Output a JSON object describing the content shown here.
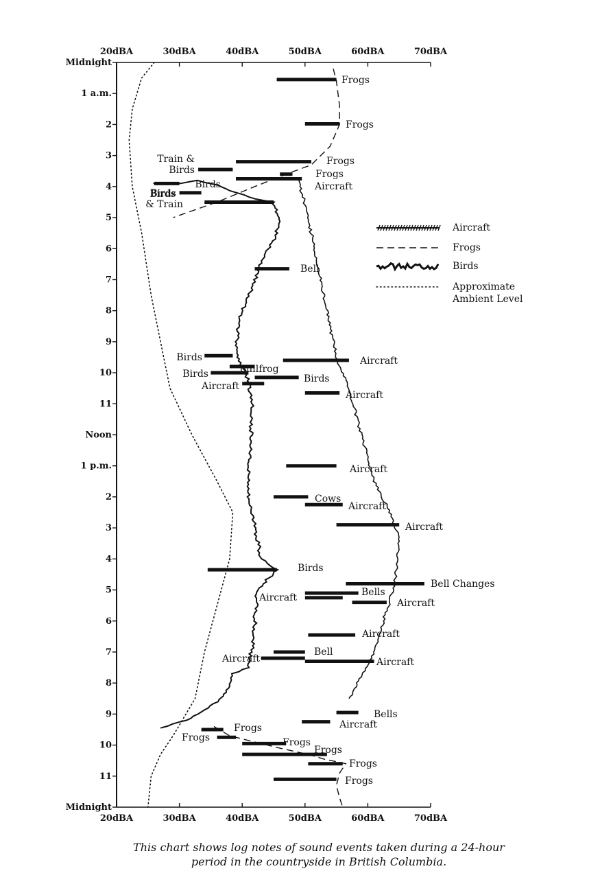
{
  "chart_data": {
    "type": "sound-event log chart",
    "x_axis": {
      "ticks": [
        "20dBA",
        "30dBA",
        "40dBA",
        "50dBA",
        "60dBA",
        "70dBA"
      ],
      "range": [
        20,
        70
      ],
      "unit": "dBA"
    },
    "y_axis": {
      "ticks": [
        "Midnight",
        "1 a.m.",
        "2",
        "3",
        "4",
        "5",
        "6",
        "7",
        "8",
        "9",
        "10",
        "11",
        "Noon",
        "1 p.m.",
        "2",
        "3",
        "4",
        "5",
        "6",
        "7",
        "8",
        "9",
        "10",
        "11",
        "Midnight"
      ],
      "range_hours": [
        0,
        24
      ],
      "direction": "downward"
    },
    "legend": {
      "placement": "right",
      "items": [
        {
          "key": "aircraft",
          "label": "Aircraft",
          "style": "hatched line"
        },
        {
          "key": "frogs",
          "label": "Frogs",
          "style": "dashed line"
        },
        {
          "key": "birds",
          "label": "Birds",
          "style": "jagged heavy line"
        },
        {
          "key": "ambient",
          "label": "Approximate Ambient Level",
          "style": "dotted line"
        }
      ]
    },
    "event_bars": [
      {
        "label": "Frogs",
        "hour": 0.55,
        "from": 45.5,
        "to": 55
      },
      {
        "label": "Frogs",
        "hour": 1.98,
        "from": 50,
        "to": 55.5
      },
      {
        "label": "Frogs",
        "hour": 3.2,
        "from": 39,
        "to": 51
      },
      {
        "label": "Train & Birds",
        "hour": 3.45,
        "from": 33,
        "to": 38.5
      },
      {
        "label": "Frogs",
        "hour": 3.6,
        "from": 46,
        "to": 48
      },
      {
        "label": "Aircraft",
        "hour": 3.75,
        "from": 39,
        "to": 49.5
      },
      {
        "label": "Birds",
        "hour": 3.9,
        "from": 26,
        "to": 30
      },
      {
        "label": "Birds",
        "hour": 4.2,
        "from": 30,
        "to": 33.5
      },
      {
        "label": "Birds & Train",
        "hour": 4.5,
        "from": 34,
        "to": 45
      },
      {
        "label": "Bell",
        "hour": 6.65,
        "from": 42,
        "to": 47.5
      },
      {
        "label": "Birds",
        "hour": 9.45,
        "from": 34,
        "to": 38.5
      },
      {
        "label": "Aircraft",
        "hour": 9.6,
        "from": 46.5,
        "to": 57
      },
      {
        "label": "Bullfrog",
        "hour": 9.8,
        "from": 38,
        "to": 42
      },
      {
        "label": "Birds",
        "hour": 10.0,
        "from": 35,
        "to": 41
      },
      {
        "label": "Birds",
        "hour": 10.15,
        "from": 42,
        "to": 49
      },
      {
        "label": "Aircraft",
        "hour": 10.35,
        "from": 40,
        "to": 43.5
      },
      {
        "label": "Aircraft",
        "hour": 10.65,
        "from": 50,
        "to": 55.5
      },
      {
        "label": "Aircraft",
        "hour": 13.0,
        "from": 47,
        "to": 55
      },
      {
        "label": "Cows",
        "hour": 14.0,
        "from": 45,
        "to": 50.5
      },
      {
        "label": "Aircraft",
        "hour": 14.25,
        "from": 50,
        "to": 56
      },
      {
        "label": "Aircraft",
        "hour": 14.9,
        "from": 55,
        "to": 65
      },
      {
        "label": "Birds",
        "hour": 16.35,
        "from": 34.5,
        "to": 45.5
      },
      {
        "label": "Bell Changes",
        "hour": 16.8,
        "from": 56.5,
        "to": 69
      },
      {
        "label": "Bells",
        "hour": 17.1,
        "from": 50,
        "to": 58.5
      },
      {
        "label": "Aircraft",
        "hour": 17.25,
        "from": 50,
        "to": 56
      },
      {
        "label": "Aircraft",
        "hour": 17.4,
        "from": 57.5,
        "to": 63
      },
      {
        "label": "Aircraft",
        "hour": 18.45,
        "from": 50.5,
        "to": 58
      },
      {
        "label": "Bell",
        "hour": 19.0,
        "from": 45,
        "to": 50
      },
      {
        "label": "Aircraft",
        "hour": 19.2,
        "from": 43,
        "to": 50
      },
      {
        "label": "Aircraft",
        "hour": 19.3,
        "from": 50,
        "to": 61
      },
      {
        "label": "Bells",
        "hour": 20.95,
        "from": 55,
        "to": 58.5
      },
      {
        "label": "Aircraft",
        "hour": 21.25,
        "from": 49.5,
        "to": 54
      },
      {
        "label": "Frogs",
        "hour": 21.5,
        "from": 33.5,
        "to": 37
      },
      {
        "label": "Frogs",
        "hour": 21.75,
        "from": 36,
        "to": 39
      },
      {
        "label": "Frogs",
        "hour": 21.95,
        "from": 40,
        "to": 47
      },
      {
        "label": "Frogs",
        "hour": 22.3,
        "from": 40,
        "to": 53.5
      },
      {
        "label": "Frogs",
        "hour": 22.6,
        "from": 50.5,
        "to": 56
      },
      {
        "label": "Frogs",
        "hour": 23.1,
        "from": 45,
        "to": 55
      }
    ],
    "series": [
      {
        "name": "Aircraft",
        "points": [
          [
            49,
            3.8
          ],
          [
            50.5,
            5.0
          ],
          [
            52,
            6.5
          ],
          [
            53.5,
            8.0
          ],
          [
            55,
            9.5
          ],
          [
            57,
            10.5
          ],
          [
            59,
            12.0
          ],
          [
            61,
            13.5
          ],
          [
            63.5,
            14.5
          ],
          [
            65,
            15.3
          ],
          [
            64.5,
            16.5
          ],
          [
            64,
            17.0
          ],
          [
            62.5,
            18.0
          ],
          [
            61,
            19.0
          ],
          [
            59,
            19.8
          ],
          [
            57,
            20.5
          ]
        ]
      },
      {
        "name": "Frogs",
        "points": [
          [
            54.5,
            0.2
          ],
          [
            55,
            0.6
          ],
          [
            55.5,
            1.4
          ],
          [
            55.5,
            2.0
          ],
          [
            54,
            2.7
          ],
          [
            51,
            3.3
          ],
          [
            47,
            3.6
          ],
          [
            42,
            4.0
          ],
          [
            36,
            4.5
          ],
          [
            29,
            5.0
          ]
        ]
      },
      {
        "name": "Frogs",
        "points": [
          [
            35.5,
            21.4
          ],
          [
            38,
            21.7
          ],
          [
            42,
            21.9
          ],
          [
            46,
            22.1
          ],
          [
            50.5,
            22.3
          ],
          [
            53,
            22.45
          ],
          [
            56.5,
            22.6
          ],
          [
            55.5,
            22.9
          ],
          [
            55,
            23.3
          ],
          [
            55.5,
            23.7
          ],
          [
            56,
            24.0
          ]
        ]
      },
      {
        "name": "Birds",
        "points": [
          [
            26,
            3.9
          ],
          [
            30,
            3.9
          ],
          [
            33,
            3.8
          ],
          [
            36,
            3.95
          ],
          [
            39,
            4.2
          ],
          [
            42,
            4.4
          ],
          [
            45,
            4.5
          ],
          [
            46,
            5.0
          ],
          [
            45.5,
            5.5
          ],
          [
            43.5,
            6.2
          ],
          [
            42,
            7.0
          ],
          [
            40,
            8.0
          ],
          [
            39,
            9.0
          ],
          [
            39,
            9.5
          ],
          [
            40,
            9.8
          ],
          [
            41,
            10.2
          ],
          [
            41.5,
            11.0
          ],
          [
            41.5,
            12.0
          ],
          [
            41,
            13.0
          ],
          [
            41,
            14.0
          ],
          [
            42,
            15.0
          ],
          [
            43,
            16.0
          ],
          [
            45.5,
            16.35
          ],
          [
            42.5,
            17.0
          ],
          [
            42,
            18.0
          ],
          [
            41.5,
            19.0
          ],
          [
            41,
            19.5
          ],
          [
            38.5,
            19.7
          ],
          [
            37.5,
            20.3
          ],
          [
            36,
            20.6
          ],
          [
            33,
            21.0
          ],
          [
            31,
            21.2
          ],
          [
            27,
            21.45
          ]
        ]
      },
      {
        "name": "Approximate Ambient Level",
        "points": [
          [
            26,
            0
          ],
          [
            24,
            0.5
          ],
          [
            22.5,
            1.5
          ],
          [
            22,
            2.5
          ],
          [
            22.5,
            4.0
          ],
          [
            24,
            5.5
          ],
          [
            25.5,
            7.5
          ],
          [
            27,
            9.0
          ],
          [
            28.5,
            10.5
          ],
          [
            32,
            12.0
          ],
          [
            36,
            13.5
          ],
          [
            38.5,
            14.5
          ],
          [
            38,
            16.0
          ],
          [
            36,
            17.5
          ],
          [
            34,
            19.0
          ],
          [
            32.5,
            20.5
          ],
          [
            29,
            21.7
          ],
          [
            27,
            22.3
          ],
          [
            25.5,
            23.0
          ],
          [
            25,
            24.0
          ]
        ]
      }
    ]
  },
  "caption": [
    "This chart shows log notes of sound events taken during a 24-hour",
    "period in the countryside in British Columbia."
  ]
}
